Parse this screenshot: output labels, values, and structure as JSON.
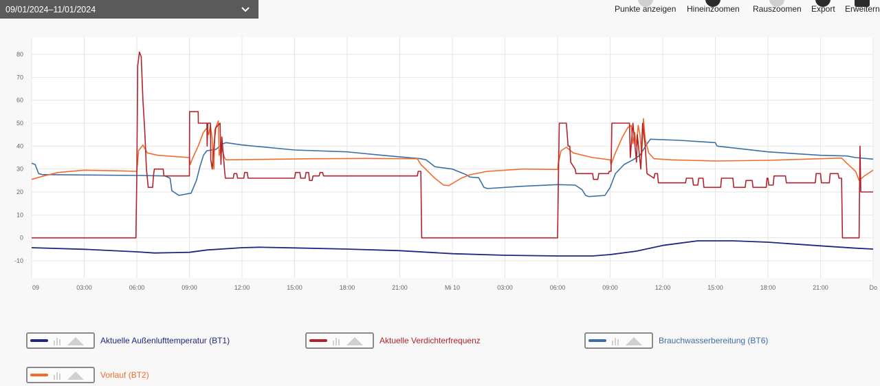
{
  "date_range": "09/01/2024–11/01/2024",
  "toolbar": {
    "show_points": "Punkte anzeigen",
    "zoom_in": "Hineinzoomen",
    "zoom_out": "Rauszoomen",
    "export": "Export",
    "advanced": "Erweitern"
  },
  "colors": {
    "bt1": "#1f2680",
    "freq": "#b2222a",
    "bt6": "#3a6ea5",
    "bt2": "#f26b2b"
  },
  "legend": [
    {
      "label": "Aktuelle Außenlufttemperatur (BT1)",
      "color": "#1f2680"
    },
    {
      "label": "Aktuelle Verdichterfrequenz",
      "color": "#b2222a"
    },
    {
      "label": "Brauchwasserbereitung (BT6)",
      "color": "#3a6ea5"
    },
    {
      "label": "Vorlauf (BT2)",
      "color": "#f26b2b"
    }
  ],
  "chart_data": {
    "type": "line",
    "x_unit": "hours from 09 00:00",
    "xlim": [
      0,
      48
    ],
    "ylim": [
      -17.5,
      87.5
    ],
    "y_ticks": [
      -10,
      0,
      10,
      20,
      30,
      40,
      50,
      60,
      70,
      80
    ],
    "x_ticks": [
      {
        "x": 0,
        "label": "09"
      },
      {
        "x": 3,
        "label": "03:00"
      },
      {
        "x": 6,
        "label": "06:00"
      },
      {
        "x": 9,
        "label": "09:00"
      },
      {
        "x": 12,
        "label": "12:00"
      },
      {
        "x": 15,
        "label": "15:00"
      },
      {
        "x": 18,
        "label": "18:00"
      },
      {
        "x": 21,
        "label": "21:00"
      },
      {
        "x": 24,
        "label": "Mi 10"
      },
      {
        "x": 27,
        "label": "03:00"
      },
      {
        "x": 30,
        "label": "06:00"
      },
      {
        "x": 33,
        "label": "09:00"
      },
      {
        "x": 36,
        "label": "12:00"
      },
      {
        "x": 39,
        "label": "15:00"
      },
      {
        "x": 42,
        "label": "18:00"
      },
      {
        "x": 45,
        "label": "21:00"
      },
      {
        "x": 48,
        "label": "Do"
      }
    ],
    "grid": true,
    "legend_position": "bottom",
    "series": [
      {
        "key": "bt1",
        "name": "Aktuelle Außenlufttemperatur (BT1)",
        "points": [
          [
            0,
            -4.3
          ],
          [
            3,
            -5
          ],
          [
            6,
            -6.1
          ],
          [
            7,
            -6.6
          ],
          [
            9,
            -6.3
          ],
          [
            10,
            -5.3
          ],
          [
            12,
            -4.3
          ],
          [
            13,
            -4.1
          ],
          [
            15,
            -4.4
          ],
          [
            18,
            -4.9
          ],
          [
            21,
            -5.6
          ],
          [
            24,
            -6.9
          ],
          [
            27,
            -7.6
          ],
          [
            30,
            -7.9
          ],
          [
            32,
            -7.9
          ],
          [
            33,
            -7.3
          ],
          [
            34.5,
            -5.8
          ],
          [
            36,
            -3.3
          ],
          [
            37,
            -2.3
          ],
          [
            38,
            -1.3
          ],
          [
            40,
            -1.3
          ],
          [
            42,
            -1.9
          ],
          [
            45,
            -3.5
          ],
          [
            47,
            -4.5
          ],
          [
            48,
            -4.9
          ]
        ]
      },
      {
        "key": "bt6",
        "name": "Brauchwasserbereitung (BT6)",
        "points": [
          [
            0,
            32.5
          ],
          [
            0.2,
            32
          ],
          [
            0.4,
            28
          ],
          [
            0.6,
            27.6
          ],
          [
            3,
            27.4
          ],
          [
            6,
            27.2
          ],
          [
            7.6,
            27
          ],
          [
            7.9,
            26
          ],
          [
            8,
            20.5
          ],
          [
            8.3,
            19
          ],
          [
            8.4,
            18.5
          ],
          [
            9.1,
            19.5
          ],
          [
            9.4,
            25
          ],
          [
            9.6,
            31
          ],
          [
            9.8,
            36
          ],
          [
            10,
            38
          ],
          [
            10.5,
            38.5
          ],
          [
            10.9,
            41
          ],
          [
            11.1,
            41.5
          ],
          [
            12,
            40.5
          ],
          [
            15,
            38.3
          ],
          [
            18,
            37.5
          ],
          [
            20,
            36
          ],
          [
            22.2,
            34.5
          ],
          [
            22.5,
            34
          ],
          [
            23,
            31
          ],
          [
            24,
            30
          ],
          [
            24.8,
            27.5
          ],
          [
            25,
            26.5
          ],
          [
            25.5,
            26.2
          ],
          [
            25.8,
            22
          ],
          [
            26,
            21.5
          ],
          [
            28,
            22.5
          ],
          [
            30,
            23.2
          ],
          [
            31,
            23
          ],
          [
            31.4,
            21
          ],
          [
            31.6,
            18.5
          ],
          [
            31.8,
            18
          ],
          [
            32.7,
            18.5
          ],
          [
            33,
            22
          ],
          [
            33.3,
            28
          ],
          [
            33.8,
            32
          ],
          [
            34.3,
            34
          ],
          [
            34.7,
            36
          ],
          [
            35.1,
            41
          ],
          [
            35.3,
            43
          ],
          [
            37,
            42.5
          ],
          [
            39,
            41.5
          ],
          [
            39.1,
            40
          ],
          [
            42,
            37.5
          ],
          [
            45,
            36
          ],
          [
            46.5,
            35.7
          ],
          [
            47,
            35
          ],
          [
            48,
            34.3
          ]
        ]
      },
      {
        "key": "bt2",
        "name": "Vorlauf (BT2)",
        "points": [
          [
            0,
            25.5
          ],
          [
            0.7,
            27
          ],
          [
            1.5,
            28.5
          ],
          [
            3,
            29.5
          ],
          [
            5,
            29.2
          ],
          [
            6,
            29
          ],
          [
            6.05,
            33
          ],
          [
            6.1,
            38
          ],
          [
            6.35,
            40.5
          ],
          [
            6.6,
            37
          ],
          [
            7.2,
            36
          ],
          [
            9,
            35
          ],
          [
            9.05,
            32
          ],
          [
            9.2,
            35
          ],
          [
            9.5,
            40
          ],
          [
            9.8,
            46
          ],
          [
            10,
            48
          ],
          [
            10.1,
            45
          ],
          [
            10.2,
            49
          ],
          [
            10.3,
            43
          ],
          [
            10.35,
            33
          ],
          [
            10.4,
            30
          ],
          [
            10.45,
            47
          ],
          [
            10.65,
            51
          ],
          [
            10.7,
            36
          ],
          [
            10.8,
            40
          ],
          [
            11,
            35
          ],
          [
            11.1,
            34
          ],
          [
            13,
            34.2
          ],
          [
            16,
            34.5
          ],
          [
            19,
            34.6
          ],
          [
            22,
            34.5
          ],
          [
            22.2,
            32
          ],
          [
            23,
            26
          ],
          [
            23.5,
            23
          ],
          [
            23.8,
            22.8
          ],
          [
            24.5,
            26
          ],
          [
            25,
            27.5
          ],
          [
            26,
            29
          ],
          [
            28,
            30
          ],
          [
            30,
            29.8
          ],
          [
            30.05,
            33
          ],
          [
            30.2,
            38
          ],
          [
            30.5,
            39.5
          ],
          [
            30.9,
            37
          ],
          [
            32,
            35
          ],
          [
            33,
            34
          ],
          [
            33.05,
            32
          ],
          [
            33.3,
            37
          ],
          [
            33.7,
            44
          ],
          [
            34,
            48
          ],
          [
            34.2,
            49
          ],
          [
            34.3,
            41
          ],
          [
            34.4,
            46
          ],
          [
            34.5,
            40
          ],
          [
            34.6,
            49
          ],
          [
            34.7,
            45
          ],
          [
            34.8,
            36
          ],
          [
            34.9,
            52
          ],
          [
            35,
            43
          ],
          [
            35.2,
            37
          ],
          [
            35.5,
            34.5
          ],
          [
            36.5,
            34
          ],
          [
            39,
            33.5
          ],
          [
            42,
            33.8
          ],
          [
            45,
            34.5
          ],
          [
            46.2,
            34.8
          ],
          [
            46.5,
            32.5
          ],
          [
            47,
            29
          ],
          [
            47.2,
            25
          ],
          [
            47.5,
            27
          ],
          [
            48,
            29.5
          ]
        ]
      },
      {
        "key": "freq",
        "name": "Aktuelle Verdichterfrequenz",
        "points": [
          [
            0,
            0
          ],
          [
            5.95,
            0
          ],
          [
            6,
            27
          ],
          [
            6.05,
            75
          ],
          [
            6.15,
            81
          ],
          [
            6.25,
            79
          ],
          [
            6.35,
            60
          ],
          [
            6.45,
            47
          ],
          [
            6.55,
            30
          ],
          [
            6.65,
            22
          ],
          [
            6.9,
            22
          ],
          [
            6.95,
            27
          ],
          [
            7,
            30
          ],
          [
            7.5,
            30
          ],
          [
            7.55,
            27
          ],
          [
            9,
            27
          ],
          [
            9.01,
            55
          ],
          [
            9.5,
            55
          ],
          [
            9.51,
            50
          ],
          [
            10,
            50
          ],
          [
            10.01,
            40
          ],
          [
            10.05,
            50
          ],
          [
            10.2,
            50
          ],
          [
            10.22,
            34
          ],
          [
            10.3,
            30
          ],
          [
            10.4,
            40
          ],
          [
            10.5,
            48
          ],
          [
            10.75,
            50
          ],
          [
            10.8,
            32
          ],
          [
            10.85,
            44
          ],
          [
            11,
            30
          ],
          [
            11.05,
            26
          ],
          [
            11.5,
            26
          ],
          [
            11.55,
            28
          ],
          [
            11.7,
            28
          ],
          [
            11.75,
            26
          ],
          [
            12.1,
            26
          ],
          [
            12.15,
            28.5
          ],
          [
            12.3,
            28.5
          ],
          [
            12.35,
            26
          ],
          [
            15,
            26
          ],
          [
            15.05,
            28.5
          ],
          [
            15.3,
            28.5
          ],
          [
            15.35,
            26
          ],
          [
            15.6,
            26
          ],
          [
            15.65,
            28.5
          ],
          [
            15.8,
            28.5
          ],
          [
            15.85,
            25
          ],
          [
            16,
            25
          ],
          [
            16.05,
            27
          ],
          [
            16.4,
            27
          ],
          [
            16.45,
            28.5
          ],
          [
            16.6,
            28.5
          ],
          [
            16.65,
            27
          ],
          [
            22,
            27
          ],
          [
            22.05,
            29
          ],
          [
            22.2,
            29
          ],
          [
            22.25,
            0
          ],
          [
            30,
            0
          ],
          [
            30.05,
            27
          ],
          [
            30.1,
            50
          ],
          [
            30.5,
            50
          ],
          [
            30.6,
            40
          ],
          [
            30.7,
            40
          ],
          [
            30.75,
            33
          ],
          [
            31,
            30
          ],
          [
            31.05,
            28
          ],
          [
            32,
            28
          ],
          [
            32.05,
            25.5
          ],
          [
            32.3,
            25.5
          ],
          [
            32.35,
            28
          ],
          [
            32.9,
            28
          ],
          [
            32.95,
            29
          ],
          [
            33.05,
            29
          ],
          [
            33.1,
            50
          ],
          [
            34.1,
            50
          ],
          [
            34.15,
            35
          ],
          [
            34.3,
            50
          ],
          [
            34.5,
            33
          ],
          [
            34.55,
            45
          ],
          [
            34.75,
            30
          ],
          [
            34.85,
            50
          ],
          [
            35,
            40
          ],
          [
            35.05,
            34
          ],
          [
            35.1,
            28
          ],
          [
            35.5,
            26
          ],
          [
            35.55,
            28
          ],
          [
            35.7,
            28
          ],
          [
            35.75,
            24
          ],
          [
            37.3,
            24
          ],
          [
            37.35,
            26
          ],
          [
            37.7,
            26
          ],
          [
            37.75,
            23
          ],
          [
            38,
            23
          ],
          [
            38.05,
            26
          ],
          [
            38.3,
            26
          ],
          [
            38.35,
            22
          ],
          [
            39.3,
            22
          ],
          [
            39.35,
            26
          ],
          [
            40,
            26
          ],
          [
            40.05,
            22
          ],
          [
            40.7,
            22
          ],
          [
            40.75,
            25
          ],
          [
            41.1,
            25
          ],
          [
            41.15,
            22
          ],
          [
            41.9,
            22
          ],
          [
            41.95,
            26
          ],
          [
            42,
            26
          ],
          [
            42.05,
            23
          ],
          [
            42.3,
            23
          ],
          [
            42.35,
            27
          ],
          [
            43,
            27
          ],
          [
            43.05,
            24
          ],
          [
            44.7,
            24
          ],
          [
            44.75,
            28
          ],
          [
            45,
            28
          ],
          [
            45.05,
            24
          ],
          [
            45.5,
            24
          ],
          [
            45.55,
            28
          ],
          [
            46,
            28
          ],
          [
            46.05,
            26
          ],
          [
            46.2,
            26
          ],
          [
            46.25,
            0
          ],
          [
            47.2,
            0
          ],
          [
            47.25,
            40
          ],
          [
            47.3,
            20
          ],
          [
            48,
            20
          ]
        ]
      }
    ]
  }
}
